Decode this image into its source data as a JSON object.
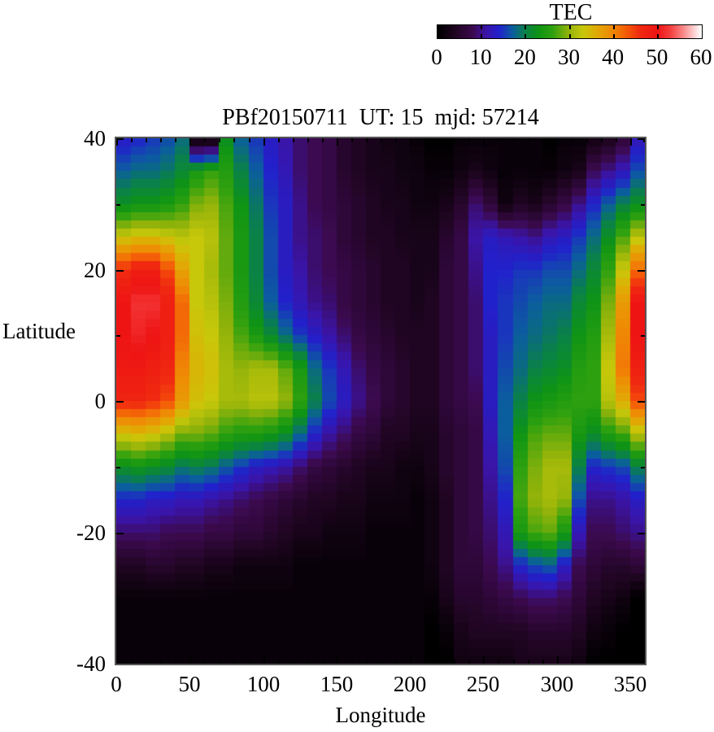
{
  "title": "PBf20150711  UT: 15  mjd: 57214",
  "colorbar": {
    "title": "TEC",
    "min": 0,
    "max": 60,
    "tick_labels": [
      0,
      10,
      20,
      30,
      40,
      50,
      60
    ],
    "bar_ticks": [
      10,
      20,
      30,
      40,
      50
    ]
  },
  "axes": {
    "x": {
      "label": "Longitude",
      "min": 0,
      "max": 360,
      "major_ticks": [
        0,
        50,
        100,
        150,
        200,
        250,
        300,
        350
      ],
      "minor_step": 10
    },
    "y": {
      "label": "Latitude",
      "min": -40,
      "max": 40,
      "major_ticks": [
        40,
        20,
        0,
        -20,
        -40
      ],
      "minor_step": 10
    }
  },
  "chart_data": {
    "type": "heatmap",
    "title": "PBf20150711  UT: 15  mjd: 57214",
    "xlabel": "Longitude",
    "ylabel": "Latitude",
    "xlim": [
      0,
      360
    ],
    "ylim": [
      -40,
      40
    ],
    "value_label": "TEC",
    "value_range": [
      0,
      60
    ],
    "lon_cell_deg": 10,
    "lat_sample_deg": 5,
    "lat_samples": [
      40,
      35,
      30,
      25,
      20,
      15,
      10,
      5,
      0,
      -5,
      -10,
      -15,
      -20,
      -25,
      -30,
      -35,
      -40
    ],
    "lon_cell_centers": [
      5,
      15,
      25,
      35,
      45,
      55,
      65,
      75,
      85,
      95,
      105,
      115,
      125,
      135,
      145,
      155,
      165,
      175,
      185,
      195,
      205,
      215,
      225,
      235,
      245,
      255,
      265,
      275,
      285,
      295,
      305,
      315,
      325,
      335,
      345,
      355
    ],
    "palette": [
      [
        0,
        "#000000"
      ],
      [
        4,
        "#200522"
      ],
      [
        8,
        "#3c0a50"
      ],
      [
        11,
        "#3a14a8"
      ],
      [
        14,
        "#2121cc"
      ],
      [
        17,
        "#0b5e9e"
      ],
      [
        20,
        "#0a8246"
      ],
      [
        23,
        "#0f9414"
      ],
      [
        26,
        "#2da00f"
      ],
      [
        30,
        "#96b40a"
      ],
      [
        33,
        "#c8c80a"
      ],
      [
        36,
        "#e0ab05"
      ],
      [
        40,
        "#f08705"
      ],
      [
        43,
        "#f55a08"
      ],
      [
        46,
        "#f02a10"
      ],
      [
        50,
        "#ee1414"
      ],
      [
        53,
        "#f54040"
      ],
      [
        56,
        "#fa8c8c"
      ],
      [
        58,
        "#fcc8c8"
      ],
      [
        60,
        "#ffffff"
      ]
    ],
    "values": [
      [
        13,
        14,
        15,
        16,
        18,
        0,
        0,
        22,
        17,
        15,
        13,
        11,
        9,
        8,
        7,
        5,
        4,
        3,
        2,
        2,
        1,
        0,
        0,
        1,
        1,
        1,
        1,
        1,
        1,
        0,
        1,
        1,
        2,
        3,
        6,
        12
      ],
      [
        17,
        18,
        18,
        19,
        21,
        24,
        26,
        25,
        20,
        17,
        14,
        12,
        9,
        8,
        7,
        5,
        4,
        3,
        3,
        2,
        2,
        1,
        1,
        2,
        3,
        2,
        1,
        1,
        1,
        1,
        2,
        3,
        8,
        10,
        12,
        16
      ],
      [
        22,
        23,
        23,
        24,
        26,
        29,
        30,
        27,
        23,
        19,
        15,
        13,
        10,
        8,
        7,
        6,
        5,
        4,
        3,
        3,
        2,
        2,
        3,
        5,
        9,
        6,
        2,
        4,
        3,
        5,
        7,
        10,
        14,
        17,
        20,
        22
      ],
      [
        33,
        34,
        34,
        33,
        32,
        33,
        32,
        28,
        24,
        20,
        16,
        13,
        10,
        9,
        8,
        6,
        5,
        4,
        4,
        3,
        3,
        3,
        5,
        7,
        11,
        13,
        12,
        11,
        10,
        12,
        13,
        15,
        18,
        22,
        27,
        32
      ],
      [
        46,
        48,
        48,
        44,
        37,
        33,
        31,
        28,
        24,
        20,
        16,
        13,
        11,
        9,
        8,
        7,
        6,
        5,
        4,
        4,
        3,
        3,
        6,
        7,
        10,
        14,
        14,
        15,
        15,
        16,
        16,
        18,
        21,
        26,
        33,
        42
      ],
      [
        50,
        52,
        52,
        48,
        42,
        33,
        32,
        29,
        25,
        21,
        17,
        14,
        12,
        10,
        9,
        7,
        6,
        5,
        4,
        4,
        3,
        4,
        6,
        7,
        9,
        14,
        15,
        16,
        17,
        18,
        18,
        21,
        23,
        29,
        38,
        50
      ],
      [
        50,
        51,
        50,
        48,
        42,
        34,
        33,
        30,
        27,
        24,
        21,
        18,
        15,
        13,
        11,
        9,
        7,
        6,
        5,
        4,
        4,
        4,
        6,
        7,
        9,
        13,
        15,
        17,
        18,
        19,
        20,
        23,
        25,
        31,
        40,
        50
      ],
      [
        49,
        49,
        48,
        47,
        40,
        35,
        34,
        31,
        30,
        31,
        31,
        28,
        24,
        18,
        15,
        12,
        9,
        7,
        6,
        5,
        4,
        4,
        6,
        7,
        9,
        13,
        16,
        18,
        20,
        21,
        22,
        25,
        26,
        33,
        41,
        48
      ],
      [
        47,
        47,
        46,
        44,
        38,
        34,
        33,
        31,
        31,
        32,
        32,
        30,
        26,
        20,
        16,
        13,
        10,
        8,
        6,
        5,
        4,
        4,
        6,
        7,
        8,
        13,
        17,
        20,
        23,
        24,
        25,
        26,
        26,
        32,
        36,
        44
      ],
      [
        34,
        35,
        34,
        32,
        29,
        29,
        28,
        26,
        25,
        25,
        24,
        22,
        18,
        14,
        11,
        9,
        7,
        6,
        4,
        4,
        3,
        3,
        5,
        6,
        7,
        12,
        17,
        23,
        27,
        28,
        28,
        24,
        22,
        25,
        27,
        32
      ],
      [
        22,
        23,
        22,
        21,
        19,
        20,
        19,
        17,
        15,
        13,
        12,
        11,
        9,
        7,
        6,
        5,
        4,
        3,
        3,
        2,
        2,
        3,
        5,
        6,
        7,
        11,
        16,
        26,
        29,
        31,
        31,
        20,
        14,
        15,
        16,
        20
      ],
      [
        14,
        14,
        13,
        13,
        12,
        12,
        11,
        10,
        9,
        8,
        7,
        6,
        5,
        4,
        4,
        3,
        3,
        2,
        2,
        2,
        1,
        2,
        4,
        6,
        7,
        10,
        14,
        27,
        30,
        31,
        30,
        16,
        10,
        10,
        11,
        13
      ],
      [
        9,
        9,
        9,
        8,
        8,
        8,
        7,
        7,
        6,
        6,
        5,
        4,
        3,
        3,
        2,
        2,
        2,
        1,
        1,
        1,
        1,
        2,
        4,
        6,
        7,
        9,
        12,
        24,
        27,
        28,
        24,
        12,
        8,
        8,
        9,
        10
      ],
      [
        4,
        4,
        5,
        5,
        4,
        4,
        3,
        3,
        2,
        2,
        2,
        2,
        1,
        1,
        1,
        1,
        1,
        1,
        1,
        1,
        1,
        2,
        4,
        6,
        6,
        8,
        10,
        14,
        16,
        17,
        13,
        8,
        6,
        5,
        5,
        6
      ],
      [
        1,
        1,
        1,
        1,
        1,
        1,
        1,
        1,
        1,
        1,
        1,
        1,
        1,
        1,
        1,
        1,
        1,
        1,
        1,
        1,
        1,
        1,
        3,
        5,
        5,
        6,
        7,
        8,
        9,
        9,
        8,
        6,
        4,
        3,
        2,
        0
      ],
      [
        1,
        1,
        1,
        1,
        1,
        1,
        1,
        1,
        1,
        1,
        1,
        1,
        1,
        1,
        1,
        1,
        1,
        1,
        1,
        1,
        1,
        0,
        1,
        3,
        4,
        4,
        4,
        4,
        5,
        5,
        5,
        4,
        2,
        1,
        0,
        0
      ],
      [
        1,
        1,
        1,
        1,
        1,
        1,
        1,
        1,
        1,
        1,
        1,
        1,
        1,
        1,
        1,
        1,
        1,
        1,
        1,
        1,
        1,
        0,
        0,
        2,
        2,
        2,
        2,
        3,
        3,
        3,
        3,
        2,
        0,
        0,
        0,
        0
      ]
    ]
  }
}
